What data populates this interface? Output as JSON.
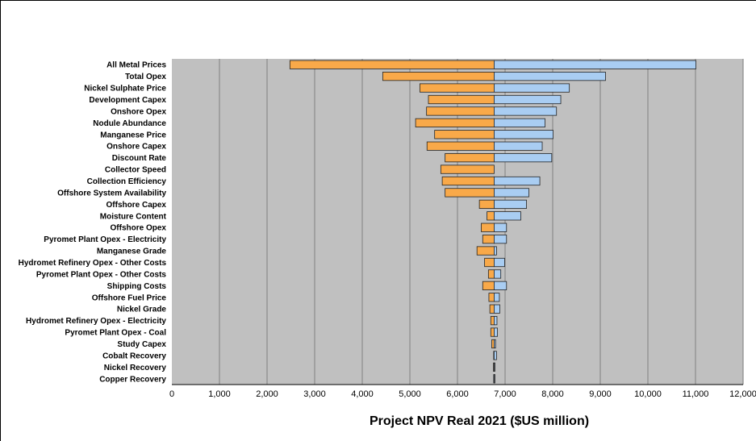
{
  "chart_data": {
    "type": "bar",
    "orientation": "horizontal",
    "subtype": "tornado",
    "base_value": 6770,
    "xlabel": "Project NPV Real 2021 ($US million)",
    "xlim": [
      0,
      12000
    ],
    "xticks": [
      0,
      1000,
      2000,
      3000,
      4000,
      5000,
      6000,
      7000,
      8000,
      9000,
      10000,
      11000,
      12000
    ],
    "xtick_labels": [
      "0",
      "1,000",
      "2,000",
      "3,000",
      "4,000",
      "5,000",
      "6,000",
      "7,000",
      "8,000",
      "9,000",
      "10,000",
      "11,000",
      "12,000"
    ],
    "grid": true,
    "legend": "none",
    "colors": {
      "low": "#F9A949",
      "high": "#A9CDF2",
      "plot_bg": "#C0C0C0",
      "gridline": "#8C8C8C",
      "bar_edge": "#222222"
    },
    "categories": [
      "All Metal Prices",
      "Total Opex",
      "Nickel Sulphate Price",
      "Development Capex",
      "Onshore Opex",
      "Nodule Abundance",
      "Manganese Price",
      "Onshore Capex",
      "Discount Rate",
      "Collector Speed",
      "Collection Efficiency",
      "Offshore System Availability",
      "Offshore Capex",
      "Moisture Content",
      "Offshore Opex",
      "Pyromet Plant Opex - Electricity",
      "Manganese Grade",
      "Hydromet Refinery Opex - Other Costs",
      "Pyromet Plant Opex - Other Costs",
      "Shipping Costs",
      "Offshore Fuel Price",
      "Nickel Grade",
      "Hydromet Refinery Opex - Electricity",
      "Pyromet Plant Opex - Coal",
      "Study Capex",
      "Cobalt Recovery",
      "Nickel Recovery",
      "Copper Recovery"
    ],
    "series": [
      {
        "values": [
          2480,
          4430,
          5210,
          5390,
          5350,
          5120,
          5520,
          5360,
          5740,
          5650,
          5680,
          5740,
          6460,
          6620,
          6500,
          6530,
          6410,
          6570,
          6650,
          6530,
          6660,
          6680,
          6700,
          6700,
          6720,
          6760,
          6755,
          6760
        ]
      },
      {
        "values": [
          11010,
          9110,
          8350,
          8170,
          8080,
          7840,
          8010,
          7780,
          7980,
          6770,
          7730,
          7500,
          7450,
          7330,
          7030,
          7030,
          6820,
          6990,
          6910,
          7030,
          6880,
          6890,
          6830,
          6840,
          6800,
          6820,
          6785,
          6780
        ]
      }
    ]
  }
}
